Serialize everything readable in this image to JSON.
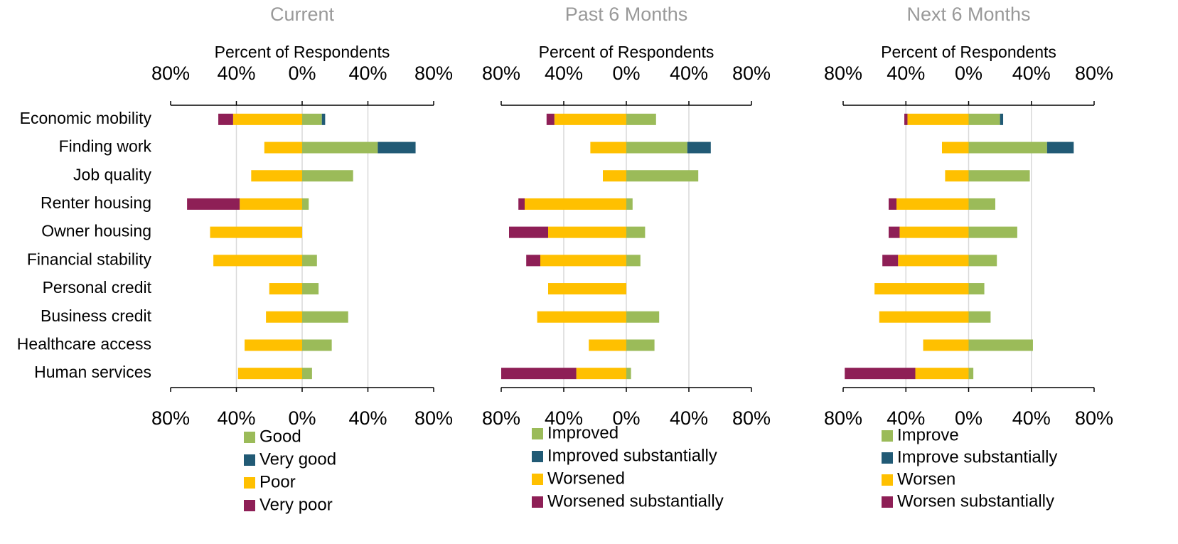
{
  "chart_data": [
    {
      "type": "diverging-bar",
      "title": "Current",
      "xlabel": "Percent of Respondents",
      "categories": [
        "Economic mobility",
        "Finding work",
        "Job quality",
        "Renter housing",
        "Owner housing",
        "Financial stability",
        "Personal credit",
        "Business credit",
        "Healthcare access",
        "Human services"
      ],
      "xlim": [
        -80,
        80
      ],
      "xticks": [
        {
          "value": -80,
          "label": "80%"
        },
        {
          "value": -40,
          "label": "40%"
        },
        {
          "value": 0,
          "label": "0%"
        },
        {
          "value": 40,
          "label": "40%"
        },
        {
          "value": 80,
          "label": "80%"
        }
      ],
      "grid": true,
      "series": [
        {
          "name": "Good",
          "color": "#9bbb59",
          "values": [
            12,
            46,
            31,
            4,
            0,
            9,
            10,
            28,
            18,
            6
          ]
        },
        {
          "name": "Very good",
          "color": "#215a75",
          "values": [
            2,
            23,
            0,
            0,
            0,
            0,
            0,
            0,
            0,
            0
          ]
        },
        {
          "name": "Poor",
          "color": "#ffc000",
          "values": [
            -42,
            -23,
            -31,
            -38,
            -56,
            -54,
            -20,
            -22,
            -35,
            -39
          ]
        },
        {
          "name": "Very poor",
          "color": "#8e1f56",
          "values": [
            -9,
            0,
            0,
            -32,
            0,
            0,
            0,
            0,
            0,
            0
          ]
        }
      ]
    },
    {
      "type": "diverging-bar",
      "title": "Past 6 Months",
      "xlabel": "Percent of Respondents",
      "xlim": [
        -80,
        80
      ],
      "xticks": [
        {
          "value": -80,
          "label": "80%"
        },
        {
          "value": -40,
          "label": "40%"
        },
        {
          "value": 0,
          "label": "0%"
        },
        {
          "value": 40,
          "label": "40%"
        },
        {
          "value": 80,
          "label": "80%"
        }
      ],
      "grid": true,
      "series": [
        {
          "name": "Improved",
          "color": "#9bbb59",
          "values": [
            19,
            39,
            46,
            4,
            12,
            9,
            0,
            21,
            18,
            3
          ]
        },
        {
          "name": "Improved substantially",
          "color": "#215a75",
          "values": [
            0,
            15,
            0,
            0,
            0,
            0,
            0,
            0,
            0,
            0
          ]
        },
        {
          "name": "Worsened",
          "color": "#ffc000",
          "values": [
            -46,
            -23,
            -15,
            -65,
            -50,
            -55,
            -50,
            -57,
            -24,
            -32
          ]
        },
        {
          "name": "Worsened substantially",
          "color": "#8e1f56",
          "values": [
            -5,
            0,
            0,
            -4,
            -25,
            -9,
            0,
            0,
            0,
            -48
          ]
        }
      ]
    },
    {
      "type": "diverging-bar",
      "title": "Next 6 Months",
      "xlabel": "Percent of Respondents",
      "xlim": [
        -80,
        80
      ],
      "xticks": [
        {
          "value": -80,
          "label": "80%"
        },
        {
          "value": -40,
          "label": "40%"
        },
        {
          "value": 0,
          "label": "0%"
        },
        {
          "value": 40,
          "label": "40%"
        },
        {
          "value": 80,
          "label": "80%"
        }
      ],
      "grid": true,
      "series": [
        {
          "name": "Improve",
          "color": "#9bbb59",
          "values": [
            20,
            50,
            39,
            17,
            31,
            18,
            10,
            14,
            41,
            3
          ]
        },
        {
          "name": "Improve substantially",
          "color": "#215a75",
          "values": [
            2,
            17,
            0,
            0,
            0,
            0,
            0,
            0,
            0,
            0
          ]
        },
        {
          "name": "Worsen",
          "color": "#ffc000",
          "values": [
            -39,
            -17,
            -15,
            -46,
            -44,
            -45,
            -60,
            -57,
            -29,
            -34
          ]
        },
        {
          "name": "Worsen substantially",
          "color": "#8e1f56",
          "values": [
            -2,
            0,
            0,
            -5,
            -7,
            -10,
            0,
            0,
            0,
            -45
          ]
        }
      ]
    }
  ]
}
